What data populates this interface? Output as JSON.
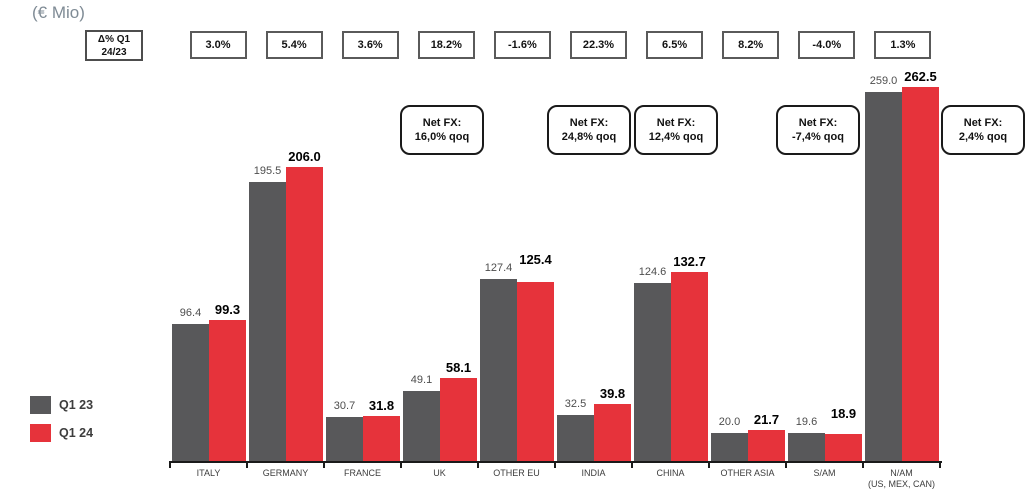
{
  "title": "(€ Mio)",
  "delta_header": {
    "line1": "Δ% Q1",
    "line2": "24/23"
  },
  "legend": {
    "items": [
      {
        "label": "Q1 23",
        "color": "#58585a"
      },
      {
        "label": "Q1 24",
        "color": "#e6333b"
      }
    ]
  },
  "chart_data": {
    "type": "bar",
    "unit": "€ Mio",
    "title": "(€ Mio)",
    "categories": [
      "ITALY",
      "GERMANY",
      "FRANCE",
      "UK",
      "OTHER EU",
      "INDIA",
      "CHINA",
      "OTHER ASIA",
      "S/AM",
      "N/AM"
    ],
    "category_sublabels": {
      "N/AM": "(US, MEX, CAN)"
    },
    "series": [
      {
        "name": "Q1 23",
        "color": "#58585a",
        "values": [
          96.4,
          195.5,
          30.7,
          49.1,
          127.4,
          32.5,
          124.6,
          20.0,
          19.6,
          259.0
        ]
      },
      {
        "name": "Q1 24",
        "color": "#e6333b",
        "values": [
          99.3,
          206.0,
          31.8,
          58.1,
          125.4,
          39.8,
          132.7,
          21.7,
          18.9,
          262.5
        ]
      }
    ],
    "delta_pct": [
      "3.0%",
      "5.4%",
      "3.6%",
      "18.2%",
      "-1.6%",
      "22.3%",
      "6.5%",
      "8.2%",
      "-4.0%",
      "1.3%"
    ],
    "net_fx": [
      {
        "line1": "Net FX:",
        "line2": "16,0% qoq",
        "anchor": "UK"
      },
      {
        "line1": "Net FX:",
        "line2": "24,8% qoq",
        "anchor": "INDIA"
      },
      {
        "line1": "Net FX:",
        "line2": "12,4% qoq",
        "anchor": "CHINA"
      },
      {
        "line1": "Net FX:",
        "line2": "-7,4% qoq",
        "anchor": "S/AM"
      },
      {
        "line1": "Net FX:",
        "line2": "2,4% qoq",
        "anchor": "right-of-chart"
      }
    ],
    "ylim": [
      0,
      262.5
    ],
    "value_labels": true,
    "grid": false,
    "legend_position": "left-bottom"
  }
}
